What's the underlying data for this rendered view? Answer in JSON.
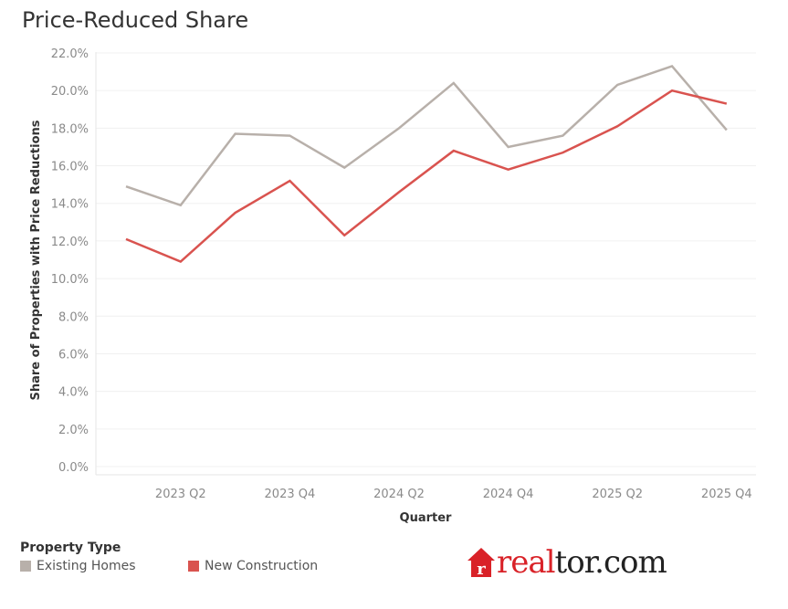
{
  "title": "Price-Reduced Share",
  "colors": {
    "existing": "#b8b0aa",
    "new": "#d9534f",
    "brand": "#d92228",
    "text": "#222222"
  },
  "legend": {
    "title": "Property Type",
    "items": [
      {
        "label": "Existing Homes",
        "color": "#b8b0aa"
      },
      {
        "label": "New Construction",
        "color": "#d9534f"
      }
    ]
  },
  "logo": {
    "red": "real",
    "dark": "tor.com",
    "icon": "house-r-icon"
  },
  "chart_data": {
    "type": "line",
    "title": "Price-Reduced Share",
    "xlabel": "Quarter",
    "ylabel": "Share of Properties with Price Reductions",
    "ylim": [
      0,
      22
    ],
    "yticks": [
      0,
      2,
      4,
      6,
      8,
      10,
      12,
      14,
      16,
      18,
      20,
      22
    ],
    "ytick_labels": [
      "0.0%",
      "2.0%",
      "4.0%",
      "6.0%",
      "8.0%",
      "10.0%",
      "12.0%",
      "14.0%",
      "16.0%",
      "18.0%",
      "20.0%",
      "22.0%"
    ],
    "x": [
      "2023 Q1",
      "2023 Q2",
      "2023 Q3",
      "2023 Q4",
      "2024 Q1",
      "2024 Q2",
      "2024 Q3",
      "2024 Q4",
      "2025 Q1",
      "2025 Q2",
      "2025 Q3",
      "2025 Q4"
    ],
    "xtick_labels": [
      "2023 Q2",
      "2023 Q4",
      "2024 Q2",
      "2024 Q4",
      "2025 Q2",
      "2025 Q4"
    ],
    "series": [
      {
        "name": "Existing Homes",
        "color": "#b8b0aa",
        "values": [
          14.9,
          13.9,
          17.7,
          17.6,
          15.9,
          18.0,
          20.4,
          17.0,
          17.6,
          20.3,
          21.3,
          17.9
        ]
      },
      {
        "name": "New Construction",
        "color": "#d9534f",
        "values": [
          12.1,
          10.9,
          13.5,
          15.2,
          12.3,
          14.6,
          16.8,
          15.8,
          16.7,
          18.1,
          20.0,
          19.3
        ]
      }
    ]
  }
}
